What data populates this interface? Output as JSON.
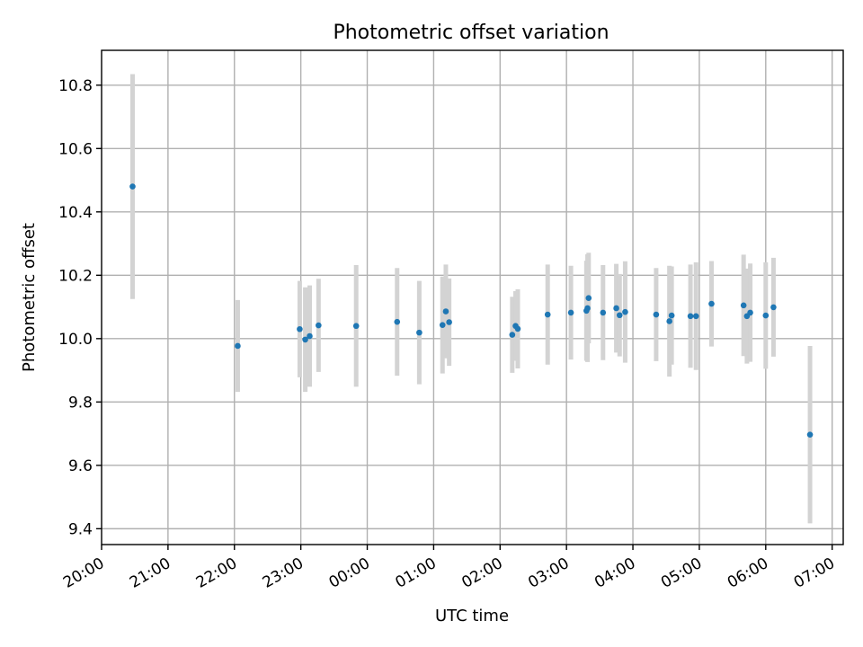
{
  "chart_data": {
    "type": "scatter",
    "title": "Photometric offset variation",
    "xlabel": "UTC time",
    "ylabel": "Photometric offset",
    "x_ticks": [
      "20:00",
      "21:00",
      "22:00",
      "23:00",
      "00:00",
      "01:00",
      "02:00",
      "03:00",
      "04:00",
      "05:00",
      "06:00",
      "07:00"
    ],
    "y_ticks": [
      "9.4",
      "9.6",
      "9.8",
      "10.0",
      "10.2",
      "10.4",
      "10.6",
      "10.8"
    ],
    "xlim": [
      "20:00",
      "07:10"
    ],
    "ylim": [
      9.35,
      10.91
    ],
    "grid": true,
    "colors": {
      "points": "#1f77b4",
      "error_bars": "#d3d3d3"
    },
    "points": [
      {
        "x": "20:28",
        "y": 10.48,
        "err": 0.355
      },
      {
        "x": "22:03",
        "y": 9.977,
        "err": 0.145
      },
      {
        "x": "22:59",
        "y": 10.03,
        "err": 0.152
      },
      {
        "x": "23:04",
        "y": 9.997,
        "err": 0.165
      },
      {
        "x": "23:08",
        "y": 10.008,
        "err": 0.16
      },
      {
        "x": "23:16",
        "y": 10.042,
        "err": 0.147
      },
      {
        "x": "23:50",
        "y": 10.04,
        "err": 0.192
      },
      {
        "x": "00:27",
        "y": 10.053,
        "err": 0.17
      },
      {
        "x": "00:47",
        "y": 10.019,
        "err": 0.163
      },
      {
        "x": "01:08",
        "y": 10.043,
        "err": 0.153
      },
      {
        "x": "01:11",
        "y": 10.086,
        "err": 0.148
      },
      {
        "x": "01:14",
        "y": 10.052,
        "err": 0.138
      },
      {
        "x": "02:11",
        "y": 10.012,
        "err": 0.12
      },
      {
        "x": "02:14",
        "y": 10.04,
        "err": 0.11
      },
      {
        "x": "02:16",
        "y": 10.031,
        "err": 0.125
      },
      {
        "x": "02:43",
        "y": 10.076,
        "err": 0.158
      },
      {
        "x": "03:04",
        "y": 10.082,
        "err": 0.148
      },
      {
        "x": "03:18",
        "y": 10.088,
        "err": 0.158
      },
      {
        "x": "03:19",
        "y": 10.096,
        "err": 0.17
      },
      {
        "x": "03:20",
        "y": 10.128,
        "err": 0.143
      },
      {
        "x": "03:33",
        "y": 10.082,
        "err": 0.15
      },
      {
        "x": "03:45",
        "y": 10.096,
        "err": 0.14
      },
      {
        "x": "03:48",
        "y": 10.074,
        "err": 0.13
      },
      {
        "x": "03:53",
        "y": 10.084,
        "err": 0.16
      },
      {
        "x": "04:21",
        "y": 10.076,
        "err": 0.147
      },
      {
        "x": "04:33",
        "y": 10.055,
        "err": 0.175
      },
      {
        "x": "04:35",
        "y": 10.073,
        "err": 0.155
      },
      {
        "x": "04:52",
        "y": 10.071,
        "err": 0.163
      },
      {
        "x": "04:57",
        "y": 10.071,
        "err": 0.17
      },
      {
        "x": "05:11",
        "y": 10.11,
        "err": 0.135
      },
      {
        "x": "05:40",
        "y": 10.105,
        "err": 0.16
      },
      {
        "x": "05:43",
        "y": 10.071,
        "err": 0.15
      },
      {
        "x": "05:46",
        "y": 10.082,
        "err": 0.155
      },
      {
        "x": "06:00",
        "y": 10.073,
        "err": 0.168
      },
      {
        "x": "06:07",
        "y": 10.099,
        "err": 0.156
      },
      {
        "x": "06:40",
        "y": 9.697,
        "err": 0.28
      }
    ]
  }
}
